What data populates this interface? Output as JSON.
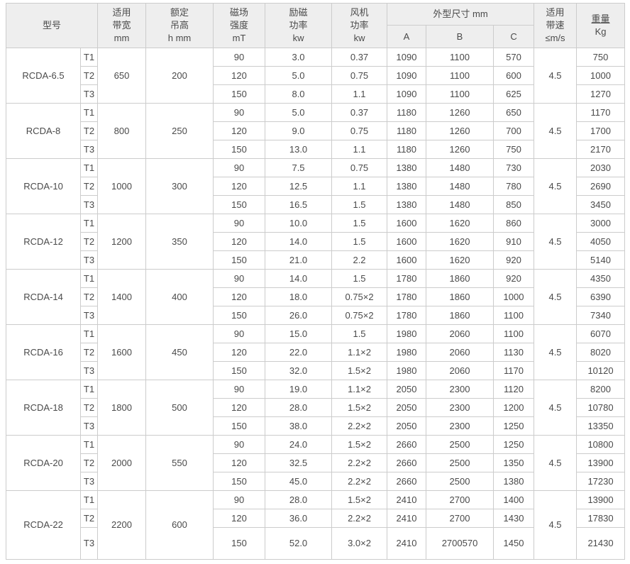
{
  "colors": {
    "header_bg": "#eeeeee",
    "border": "#cccccc",
    "text": "#4a4a4a",
    "row_bg": "#ffffff"
  },
  "table": {
    "header": {
      "model": "型号",
      "bandwidth": [
        "适用",
        "带宽",
        "mm"
      ],
      "height": [
        "额定",
        "吊高",
        "h mm"
      ],
      "field": [
        "磁场",
        "强度",
        "mT"
      ],
      "excitation": [
        "励磁",
        "功率",
        "kw"
      ],
      "fan": [
        "风机",
        "功率",
        "kw"
      ],
      "dimensions": "外型尺寸 mm",
      "dim_a": "A",
      "dim_b": "B",
      "dim_c": "C",
      "speed": [
        "适用",
        "带速",
        "≤m/s"
      ],
      "weight_title": "重量",
      "weight_unit": "Kg"
    },
    "groups": [
      {
        "model": "RCDA-6.5",
        "bandwidth": "650",
        "height": "200",
        "speed": "4.5",
        "rows": [
          {
            "t": "T1",
            "field": "90",
            "excitation": "3.0",
            "fan": "0.37",
            "a": "1090",
            "b": "1100",
            "c": "570",
            "weight": "750"
          },
          {
            "t": "T2",
            "field": "120",
            "excitation": "5.0",
            "fan": "0.75",
            "a": "1090",
            "b": "1100",
            "c": "600",
            "weight": "1000"
          },
          {
            "t": "T3",
            "field": "150",
            "excitation": "8.0",
            "fan": "1.1",
            "a": "1090",
            "b": "1100",
            "c": "625",
            "weight": "1270"
          }
        ]
      },
      {
        "model": "RCDA-8",
        "bandwidth": "800",
        "height": "250",
        "speed": "4.5",
        "rows": [
          {
            "t": "T1",
            "field": "90",
            "excitation": "5.0",
            "fan": "0.37",
            "a": "1180",
            "b": "1260",
            "c": "650",
            "weight": "1170"
          },
          {
            "t": "T2",
            "field": "120",
            "excitation": "9.0",
            "fan": "0.75",
            "a": "1180",
            "b": "1260",
            "c": "700",
            "weight": "1700"
          },
          {
            "t": "T3",
            "field": "150",
            "excitation": "13.0",
            "fan": "1.1",
            "a": "1180",
            "b": "1260",
            "c": "750",
            "weight": "2170"
          }
        ]
      },
      {
        "model": "RCDA-10",
        "bandwidth": "1000",
        "height": "300",
        "speed": "4.5",
        "rows": [
          {
            "t": "T1",
            "field": "90",
            "excitation": "7.5",
            "fan": "0.75",
            "a": "1380",
            "b": "1480",
            "c": "730",
            "weight": "2030"
          },
          {
            "t": "T2",
            "field": "120",
            "excitation": "12.5",
            "fan": "1.1",
            "a": "1380",
            "b": "1480",
            "c": "780",
            "weight": "2690"
          },
          {
            "t": "T3",
            "field": "150",
            "excitation": "16.5",
            "fan": "1.5",
            "a": "1380",
            "b": "1480",
            "c": "850",
            "weight": "3450"
          }
        ]
      },
      {
        "model": "RCDA-12",
        "bandwidth": "1200",
        "height": "350",
        "speed": "4.5",
        "rows": [
          {
            "t": "T1",
            "field": "90",
            "excitation": "10.0",
            "fan": "1.5",
            "a": "1600",
            "b": "1620",
            "c": "860",
            "weight": "3000"
          },
          {
            "t": "T2",
            "field": "120",
            "excitation": "14.0",
            "fan": "1.5",
            "a": "1600",
            "b": "1620",
            "c": "910",
            "weight": "4050"
          },
          {
            "t": "T3",
            "field": "150",
            "excitation": "21.0",
            "fan": "2.2",
            "a": "1600",
            "b": "1620",
            "c": "920",
            "weight": "5140"
          }
        ]
      },
      {
        "model": "RCDA-14",
        "bandwidth": "1400",
        "height": "400",
        "speed": "4.5",
        "rows": [
          {
            "t": "T1",
            "field": "90",
            "excitation": "14.0",
            "fan": "1.5",
            "a": "1780",
            "b": "1860",
            "c": "920",
            "weight": "4350"
          },
          {
            "t": "T2",
            "field": "120",
            "excitation": "18.0",
            "fan": "0.75×2",
            "a": "1780",
            "b": "1860",
            "c": "1000",
            "weight": "6390"
          },
          {
            "t": "T3",
            "field": "150",
            "excitation": "26.0",
            "fan": "0.75×2",
            "a": "1780",
            "b": "1860",
            "c": "1100",
            "weight": "7340"
          }
        ]
      },
      {
        "model": "RCDA-16",
        "bandwidth": "1600",
        "height": "450",
        "speed": "4.5",
        "rows": [
          {
            "t": "T1",
            "field": "90",
            "excitation": "15.0",
            "fan": "1.5",
            "a": "1980",
            "b": "2060",
            "c": "1100",
            "weight": "6070"
          },
          {
            "t": "T2",
            "field": "120",
            "excitation": "22.0",
            "fan": "1.1×2",
            "a": "1980",
            "b": "2060",
            "c": "1130",
            "weight": "8020"
          },
          {
            "t": "T3",
            "field": "150",
            "excitation": "32.0",
            "fan": "1.5×2",
            "a": "1980",
            "b": "2060",
            "c": "1170",
            "weight": "10120"
          }
        ]
      },
      {
        "model": "RCDA-18",
        "bandwidth": "1800",
        "height": "500",
        "speed": "4.5",
        "rows": [
          {
            "t": "T1",
            "field": "90",
            "excitation": "19.0",
            "fan": "1.1×2",
            "a": "2050",
            "b": "2300",
            "c": "1120",
            "weight": "8200"
          },
          {
            "t": "T2",
            "field": "120",
            "excitation": "28.0",
            "fan": "1.5×2",
            "a": "2050",
            "b": "2300",
            "c": "1200",
            "weight": "10780"
          },
          {
            "t": "T3",
            "field": "150",
            "excitation": "38.0",
            "fan": "2.2×2",
            "a": "2050",
            "b": "2300",
            "c": "1250",
            "weight": "13350"
          }
        ]
      },
      {
        "model": "RCDA-20",
        "bandwidth": "2000",
        "height": "550",
        "speed": "4.5",
        "rows": [
          {
            "t": "T1",
            "field": "90",
            "excitation": "24.0",
            "fan": "1.5×2",
            "a": "2660",
            "b": "2500",
            "c": "1250",
            "weight": "10800"
          },
          {
            "t": "T2",
            "field": "120",
            "excitation": "32.5",
            "fan": "2.2×2",
            "a": "2660",
            "b": "2500",
            "c": "1350",
            "weight": "13900"
          },
          {
            "t": "T3",
            "field": "150",
            "excitation": "45.0",
            "fan": "2.2×2",
            "a": "2660",
            "b": "2500",
            "c": "1380",
            "weight": "17230"
          }
        ]
      },
      {
        "model": "RCDA-22",
        "bandwidth": "2200",
        "height": "600",
        "speed": "4.5",
        "rows": [
          {
            "t": "T1",
            "field": "90",
            "excitation": "28.0",
            "fan": "1.5×2",
            "a": "2410",
            "b": "2700",
            "c": "1400",
            "weight": "13900"
          },
          {
            "t": "T2",
            "field": "120",
            "excitation": "36.0",
            "fan": "2.2×2",
            "a": "2410",
            "b": "2700",
            "c": "1430",
            "weight": "17830"
          },
          {
            "t": "T3",
            "field": "150",
            "excitation": "52.0",
            "fan": "3.0×2",
            "a": "2410",
            "b": "2700570",
            "c": "1450",
            "weight": "21430"
          }
        ]
      }
    ]
  }
}
